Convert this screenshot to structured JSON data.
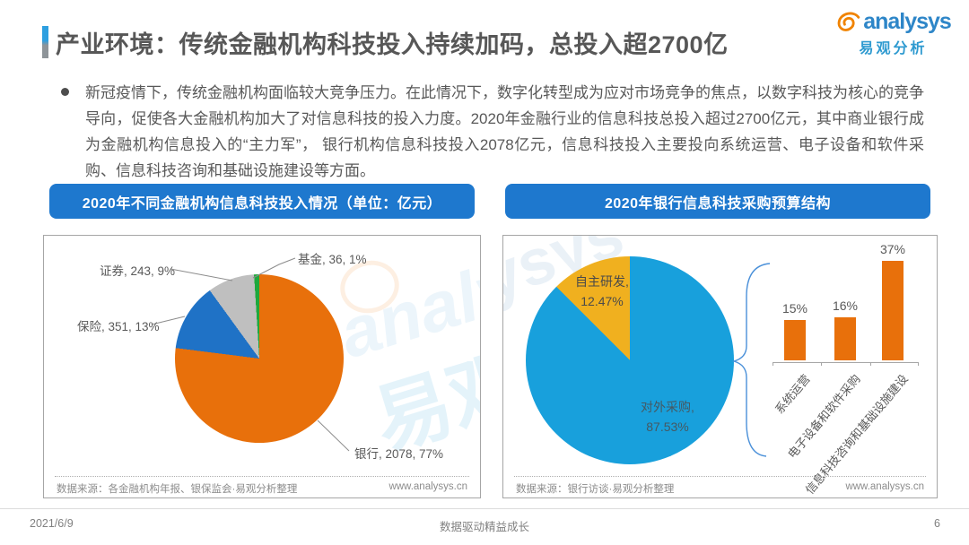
{
  "page": {
    "title": "产业环境：传统金融机构科技投入持续加码，总投入超2700亿",
    "logo_en": "analysys",
    "logo_cn": "易观分析",
    "footer_date": "2021/6/9",
    "footer_slogan": "数据驱动精益成长",
    "footer_page": "6"
  },
  "summary": "新冠疫情下，传统金融机构面临较大竞争压力。在此情况下，数字化转型成为应对市场竞争的焦点，以数字科技为核心的竞争导向，促使各大金融机构加大了对信息科技的投入力度。2020年金融行业的信息科技总投入超过2700亿元，其中商业银行成为金融机构信息投入的“主力军”， 银行机构信息科技投入2078亿元，信息科技投入主要投向系统运营、电子设备和软件采购、信息科技咨询和基础设施建设等方面。",
  "left_panel": {
    "header": "2020年不同金融机构信息科技投入情况（单位：亿元）",
    "source": "数据来源：各金融机构年报、银保监会·易观分析整理",
    "website": "www.analysys.cn",
    "watermark_en": "analysys",
    "watermark_cn": "易观"
  },
  "right_panel": {
    "header": "2020年银行信息科技采购预算结构",
    "source": "数据来源：银行访谈·易观分析整理",
    "website": "www.analysys.cn",
    "watermark_en": "ysys"
  },
  "chart_data": [
    {
      "id": "institution-it-investment-pie",
      "type": "pie",
      "title": "2020年不同金融机构信息科技投入情况（单位：亿元）",
      "unit": "亿元",
      "direction": "clockwise-from-top",
      "slices": [
        {
          "name": "银行",
          "value": 2078,
          "pct": 77,
          "label": "银行, 2078, 77%",
          "color": "#E8700B"
        },
        {
          "name": "保险",
          "value": 351,
          "pct": 13,
          "label": "保险, 351, 13%",
          "color": "#1F72C6"
        },
        {
          "name": "证券",
          "value": 243,
          "pct": 9,
          "label": "证券, 243, 9%",
          "color": "#BFBFBF"
        },
        {
          "name": "基金",
          "value": 36,
          "pct": 1,
          "label": "基金, 36, 1%",
          "color": "#1FA83C"
        }
      ]
    },
    {
      "id": "bank-it-procurement-pie",
      "type": "pie",
      "title": "2020年银行信息科技采购预算结构",
      "direction": "clockwise-from-top",
      "slices": [
        {
          "name": "对外采购",
          "pct": 87.53,
          "label_line1": "对外采购,",
          "label_line2": "87.53%",
          "color": "#18A0DC"
        },
        {
          "name": "自主研发",
          "pct": 12.47,
          "label_line1": "自主研发,",
          "label_line2": "12.47%",
          "color": "#F0B01F"
        }
      ]
    },
    {
      "id": "procurement-budget-bars",
      "type": "bar",
      "categories": [
        "系统运营",
        "电子设备和软件采购",
        "信息科技咨询和基础设施建设"
      ],
      "values": [
        15,
        16,
        37
      ],
      "value_labels": [
        "15%",
        "16%",
        "37%"
      ],
      "bar_color": "#E8700B",
      "ylim": [
        0,
        40
      ],
      "legend": "none",
      "grid": false
    }
  ]
}
